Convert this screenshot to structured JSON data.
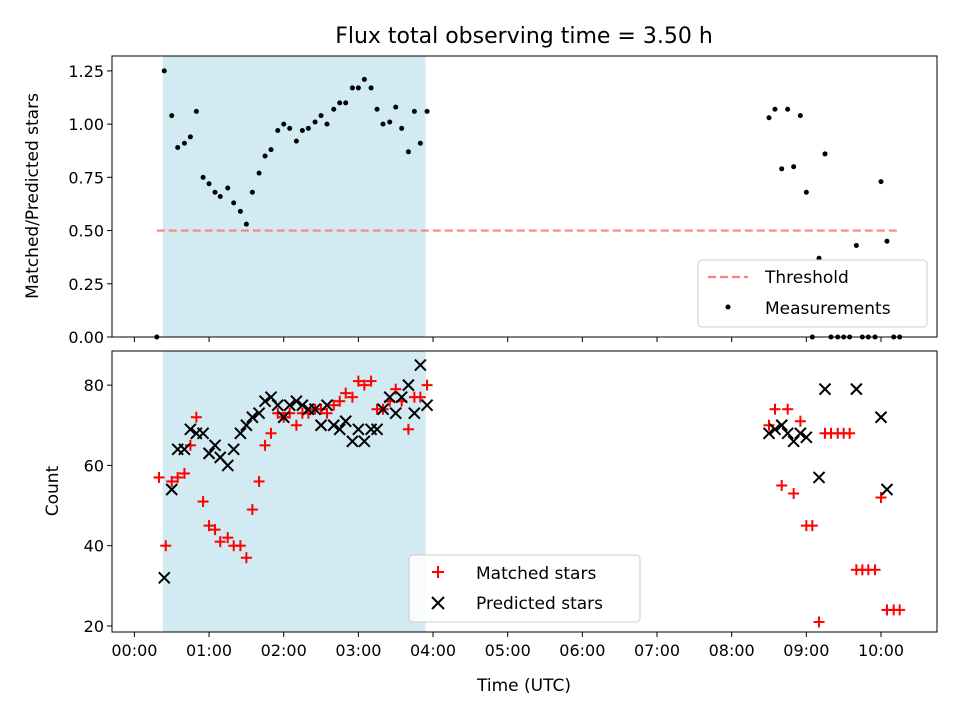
{
  "chart_data": {
    "type": "scatter",
    "title": "Flux total observing time = 3.50 h",
    "xlabel": "Time (UTC)",
    "x_ticks": [
      "00:00",
      "01:00",
      "02:00",
      "03:00",
      "04:00",
      "05:00",
      "06:00",
      "07:00",
      "08:00",
      "09:00",
      "10:00"
    ],
    "x_range_hours": [
      -0.3,
      10.75
    ],
    "shaded_interval_hours": [
      0.38,
      3.9
    ],
    "shade_color": "#add8e6",
    "panels": [
      {
        "ylabel": "Matched/Predicted stars",
        "ylim": [
          0,
          1.32
        ],
        "y_ticks": [
          "0.00",
          "0.25",
          "0.50",
          "0.75",
          "1.00",
          "1.25"
        ],
        "threshold": {
          "name": "Threshold",
          "value": 0.5,
          "x_range": [
            0.3,
            10.25
          ],
          "color": "#ff8080"
        },
        "legend": [
          "Threshold",
          "Measurements"
        ],
        "legend_position": "lower right",
        "series": [
          {
            "name": "Measurements",
            "color": "#000000",
            "marker": "dot",
            "points": [
              [
                0.3,
                0.0
              ],
              [
                0.4,
                1.25
              ],
              [
                0.5,
                1.04
              ],
              [
                0.58,
                0.89
              ],
              [
                0.67,
                0.91
              ],
              [
                0.75,
                0.94
              ],
              [
                0.83,
                1.06
              ],
              [
                0.92,
                0.75
              ],
              [
                1.0,
                0.72
              ],
              [
                1.08,
                0.68
              ],
              [
                1.15,
                0.66
              ],
              [
                1.25,
                0.7
              ],
              [
                1.33,
                0.63
              ],
              [
                1.42,
                0.59
              ],
              [
                1.5,
                0.53
              ],
              [
                1.58,
                0.68
              ],
              [
                1.67,
                0.77
              ],
              [
                1.75,
                0.85
              ],
              [
                1.83,
                0.88
              ],
              [
                1.92,
                0.97
              ],
              [
                2.0,
                1.0
              ],
              [
                2.08,
                0.98
              ],
              [
                2.17,
                0.92
              ],
              [
                2.25,
                0.97
              ],
              [
                2.33,
                0.98
              ],
              [
                2.42,
                1.01
              ],
              [
                2.5,
                1.04
              ],
              [
                2.58,
                1.0
              ],
              [
                2.67,
                1.07
              ],
              [
                2.75,
                1.1
              ],
              [
                2.83,
                1.1
              ],
              [
                2.92,
                1.17
              ],
              [
                3.0,
                1.17
              ],
              [
                3.08,
                1.21
              ],
              [
                3.17,
                1.17
              ],
              [
                3.25,
                1.07
              ],
              [
                3.33,
                1.0
              ],
              [
                3.42,
                1.01
              ],
              [
                3.5,
                1.08
              ],
              [
                3.58,
                0.98
              ],
              [
                3.67,
                0.87
              ],
              [
                3.75,
                1.06
              ],
              [
                3.83,
                0.91
              ],
              [
                3.92,
                1.06
              ],
              [
                8.5,
                1.03
              ],
              [
                8.58,
                1.07
              ],
              [
                8.67,
                0.79
              ],
              [
                8.75,
                1.07
              ],
              [
                8.83,
                0.8
              ],
              [
                8.92,
                1.04
              ],
              [
                9.0,
                0.68
              ],
              [
                9.08,
                0.0
              ],
              [
                9.17,
                0.37
              ],
              [
                9.25,
                0.86
              ],
              [
                9.33,
                0.0
              ],
              [
                9.42,
                0.0
              ],
              [
                9.5,
                0.0
              ],
              [
                9.58,
                0.0
              ],
              [
                9.67,
                0.43
              ],
              [
                9.75,
                0.0
              ],
              [
                9.83,
                0.0
              ],
              [
                9.92,
                0.0
              ],
              [
                10.0,
                0.73
              ],
              [
                10.08,
                0.45
              ],
              [
                10.17,
                0.0
              ],
              [
                10.25,
                0.0
              ]
            ]
          }
        ]
      },
      {
        "ylabel": "Count",
        "ylim": [
          18.5,
          88.5
        ],
        "y_ticks": [
          "20",
          "40",
          "60",
          "80"
        ],
        "legend": [
          "Matched stars",
          "Predicted stars"
        ],
        "legend_position": "lower center",
        "series": [
          {
            "name": "Matched stars",
            "color": "#ff0000",
            "marker": "plus",
            "points": [
              [
                0.33,
                57
              ],
              [
                0.42,
                40
              ],
              [
                0.5,
                56
              ],
              [
                0.58,
                57
              ],
              [
                0.67,
                58
              ],
              [
                0.75,
                65
              ],
              [
                0.83,
                72
              ],
              [
                0.92,
                51
              ],
              [
                1.0,
                45
              ],
              [
                1.08,
                44
              ],
              [
                1.15,
                41
              ],
              [
                1.25,
                42
              ],
              [
                1.33,
                40
              ],
              [
                1.42,
                40
              ],
              [
                1.5,
                37
              ],
              [
                1.58,
                49
              ],
              [
                1.67,
                56
              ],
              [
                1.75,
                65
              ],
              [
                1.83,
                68
              ],
              [
                1.92,
                73
              ],
              [
                2.0,
                72
              ],
              [
                2.08,
                73
              ],
              [
                2.17,
                70
              ],
              [
                2.25,
                73
              ],
              [
                2.33,
                73
              ],
              [
                2.42,
                74
              ],
              [
                2.5,
                74
              ],
              [
                2.58,
                73
              ],
              [
                2.67,
                75
              ],
              [
                2.75,
                76
              ],
              [
                2.83,
                78
              ],
              [
                2.92,
                77
              ],
              [
                3.0,
                81
              ],
              [
                3.08,
                80
              ],
              [
                3.17,
                81
              ],
              [
                3.25,
                74
              ],
              [
                3.33,
                74
              ],
              [
                3.42,
                76
              ],
              [
                3.5,
                79
              ],
              [
                3.58,
                76
              ],
              [
                3.67,
                69
              ],
              [
                3.75,
                77
              ],
              [
                3.83,
                77
              ],
              [
                3.92,
                80
              ],
              [
                8.5,
                70
              ],
              [
                8.58,
                74
              ],
              [
                8.67,
                55
              ],
              [
                8.75,
                74
              ],
              [
                8.83,
                53
              ],
              [
                8.92,
                71
              ],
              [
                9.0,
                45
              ],
              [
                9.08,
                45
              ],
              [
                9.17,
                21
              ],
              [
                9.25,
                68
              ],
              [
                9.33,
                68
              ],
              [
                9.42,
                68
              ],
              [
                9.5,
                68
              ],
              [
                9.58,
                68
              ],
              [
                9.67,
                34
              ],
              [
                9.75,
                34
              ],
              [
                9.83,
                34
              ],
              [
                9.92,
                34
              ],
              [
                10.0,
                52
              ],
              [
                10.08,
                24
              ],
              [
                10.17,
                24
              ],
              [
                10.25,
                24
              ]
            ]
          },
          {
            "name": "Predicted stars",
            "color": "#000000",
            "marker": "x",
            "points": [
              [
                0.4,
                32
              ],
              [
                0.5,
                54
              ],
              [
                0.58,
                64
              ],
              [
                0.67,
                64
              ],
              [
                0.75,
                69
              ],
              [
                0.83,
                68
              ],
              [
                0.92,
                68
              ],
              [
                1.0,
                63
              ],
              [
                1.08,
                65
              ],
              [
                1.15,
                62
              ],
              [
                1.25,
                60
              ],
              [
                1.33,
                64
              ],
              [
                1.42,
                68
              ],
              [
                1.5,
                70
              ],
              [
                1.58,
                72
              ],
              [
                1.67,
                73
              ],
              [
                1.75,
                76
              ],
              [
                1.83,
                77
              ],
              [
                1.92,
                75
              ],
              [
                2.0,
                72
              ],
              [
                2.08,
                75
              ],
              [
                2.17,
                76
              ],
              [
                2.25,
                75
              ],
              [
                2.33,
                74
              ],
              [
                2.42,
                74
              ],
              [
                2.5,
                70
              ],
              [
                2.58,
                75
              ],
              [
                2.67,
                70
              ],
              [
                2.75,
                69
              ],
              [
                2.83,
                71
              ],
              [
                2.92,
                66
              ],
              [
                3.0,
                69
              ],
              [
                3.08,
                66
              ],
              [
                3.17,
                69
              ],
              [
                3.25,
                69
              ],
              [
                3.33,
                74
              ],
              [
                3.42,
                77
              ],
              [
                3.5,
                73
              ],
              [
                3.58,
                77
              ],
              [
                3.67,
                80
              ],
              [
                3.75,
                73
              ],
              [
                3.83,
                85
              ],
              [
                3.92,
                75
              ],
              [
                8.5,
                68
              ],
              [
                8.58,
                69
              ],
              [
                8.67,
                70
              ],
              [
                8.75,
                68
              ],
              [
                8.83,
                66
              ],
              [
                8.92,
                68
              ],
              [
                9.0,
                67
              ],
              [
                9.17,
                57
              ],
              [
                9.25,
                79
              ],
              [
                9.67,
                79
              ],
              [
                10.0,
                72
              ],
              [
                10.08,
                54
              ]
            ]
          }
        ]
      }
    ]
  }
}
